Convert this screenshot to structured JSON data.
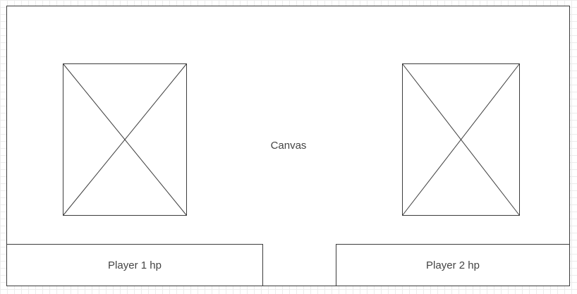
{
  "canvas": {
    "label": "Canvas",
    "border_color": "#3c3c3c",
    "background_color": "#ffffff"
  },
  "players": [
    {
      "hp_label": "Player 1 hp"
    },
    {
      "hp_label": "Player 2 hp"
    }
  ],
  "placeholders": [
    {
      "icon": "image-placeholder-icon"
    },
    {
      "icon": "image-placeholder-icon"
    }
  ],
  "text_color": "#444444",
  "grid_color": "#ececec"
}
